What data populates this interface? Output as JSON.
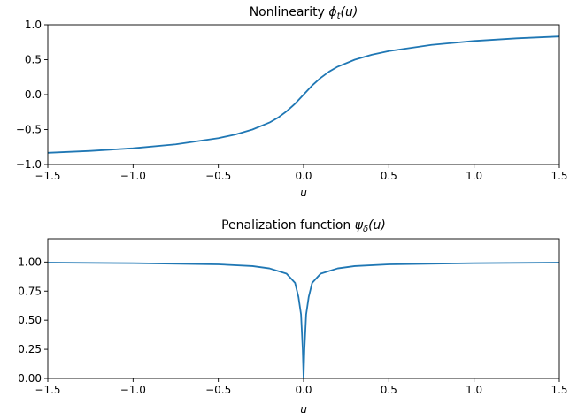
{
  "chart_data": [
    {
      "type": "line",
      "title": "Nonlinearity ϕ_t(u)",
      "title_main": "Nonlinearity ",
      "title_sym": "ϕ",
      "title_sub": "t",
      "title_arg": "(u)",
      "xlabel": "u",
      "ylabel": "",
      "xlim": [
        -1.5,
        1.5
      ],
      "ylim": [
        -1.0,
        1.0
      ],
      "xticks": [
        -1.5,
        -1.0,
        -0.5,
        0.0,
        0.5,
        1.0,
        1.5
      ],
      "xtick_labels": [
        "−1.5",
        "−1.0",
        "−0.5",
        "0.0",
        "0.5",
        "1.0",
        "1.5"
      ],
      "yticks": [
        -1.0,
        -0.5,
        0.0,
        0.5,
        1.0
      ],
      "ytick_labels": [
        "−1.0",
        "−0.5",
        "0.0",
        "0.5",
        "1.0"
      ],
      "grid": false,
      "color": "#1f77b4",
      "x": [
        -1.5,
        -1.25,
        -1.0,
        -0.75,
        -0.5,
        -0.4,
        -0.3,
        -0.2,
        -0.15,
        -0.1,
        -0.05,
        0.0,
        0.05,
        0.1,
        0.15,
        0.2,
        0.3,
        0.4,
        0.5,
        0.75,
        1.0,
        1.25,
        1.5
      ],
      "y": [
        -0.833,
        -0.806,
        -0.768,
        -0.712,
        -0.623,
        -0.571,
        -0.5,
        -0.4,
        -0.33,
        -0.24,
        -0.13,
        0.0,
        0.13,
        0.24,
        0.33,
        0.4,
        0.5,
        0.571,
        0.623,
        0.712,
        0.768,
        0.806,
        0.833
      ]
    },
    {
      "type": "line",
      "title": "Penalization function ψ_δ(u)",
      "title_main": "Penalization function ",
      "title_sym": "ψ",
      "title_sub": "δ",
      "title_arg": "(u)",
      "xlabel": "u",
      "ylabel": "",
      "xlim": [
        -1.5,
        1.5
      ],
      "ylim": [
        0.0,
        1.2
      ],
      "xticks": [
        -1.5,
        -1.0,
        -0.5,
        0.0,
        0.5,
        1.0,
        1.5
      ],
      "xtick_labels": [
        "−1.5",
        "−1.0",
        "−0.5",
        "0.0",
        "0.5",
        "1.0",
        "1.5"
      ],
      "yticks": [
        0.0,
        0.25,
        0.5,
        0.75,
        1.0
      ],
      "ytick_labels": [
        "0.00",
        "0.25",
        "0.50",
        "0.75",
        "1.00"
      ],
      "grid": false,
      "color": "#1f77b4",
      "x": [
        -1.5,
        -1.0,
        -0.5,
        -0.3,
        -0.2,
        -0.1,
        -0.05,
        -0.03,
        -0.015,
        -0.005,
        0.0,
        0.005,
        0.015,
        0.03,
        0.05,
        0.1,
        0.2,
        0.3,
        0.5,
        1.0,
        1.5
      ],
      "y": [
        0.995,
        0.99,
        0.98,
        0.965,
        0.945,
        0.9,
        0.82,
        0.7,
        0.55,
        0.25,
        0.0,
        0.25,
        0.55,
        0.7,
        0.82,
        0.9,
        0.945,
        0.965,
        0.98,
        0.99,
        0.995
      ]
    }
  ]
}
